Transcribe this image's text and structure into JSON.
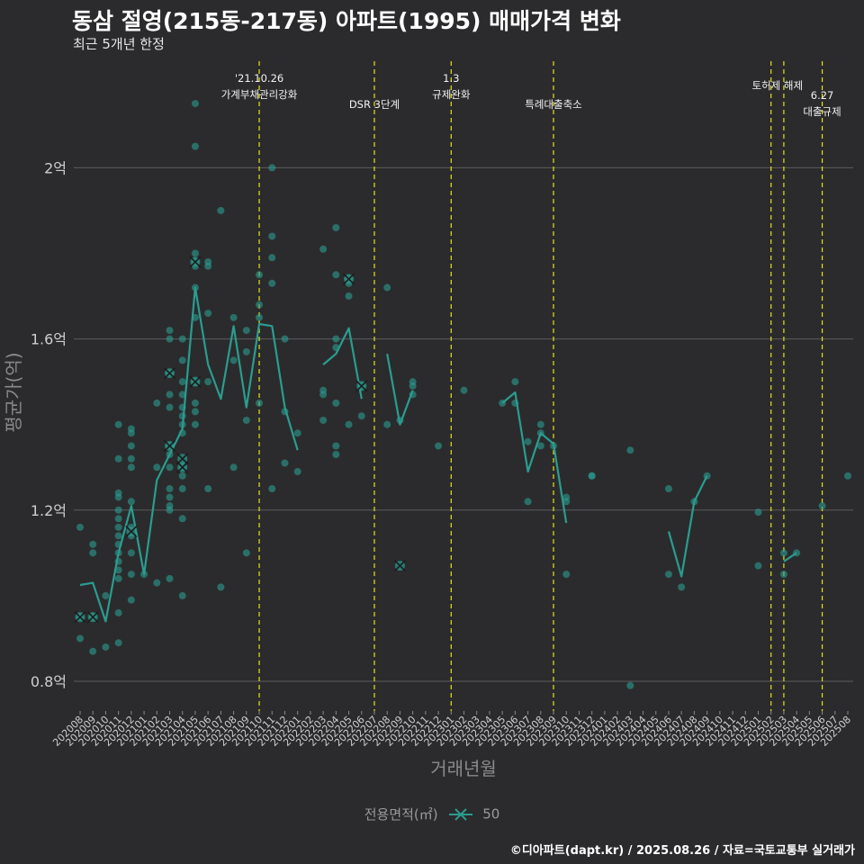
{
  "chart_data": {
    "type": "line",
    "title": "동삼 절영(215동-217동) 아파트(1995) 매매가격 변화",
    "subtitle": "최근 5개년 한정",
    "xlabel": "거래년월",
    "ylabel": "평균가(억)",
    "ylim": [
      0.72,
      2.26
    ],
    "y_ticks": [
      0.8,
      1.2,
      1.6,
      2.0
    ],
    "y_tick_labels": [
      "0.8억",
      "1.2억",
      "1.6억",
      "2억"
    ],
    "grid": true,
    "months": [
      "202008",
      "202009",
      "202010",
      "202011",
      "202012",
      "202101",
      "202102",
      "202103",
      "202104",
      "202105",
      "202106",
      "202107",
      "202108",
      "202109",
      "202110",
      "202111",
      "202112",
      "202201",
      "202202",
      "202203",
      "202204",
      "202205",
      "202206",
      "202207",
      "202208",
      "202209",
      "202210",
      "202211",
      "202212",
      "202301",
      "202302",
      "202303",
      "202304",
      "202305",
      "202306",
      "202307",
      "202308",
      "202309",
      "202310",
      "202311",
      "202312",
      "202401",
      "202402",
      "202403",
      "202404",
      "202405",
      "202406",
      "202407",
      "202408",
      "202409",
      "202410",
      "202411",
      "202412",
      "202501",
      "202502",
      "202503",
      "202504",
      "202505",
      "202506",
      "202507",
      "202508"
    ],
    "legend": {
      "title": "전용면적(㎡)",
      "entries": [
        "50"
      ],
      "position": "bottom"
    },
    "series": [
      {
        "name": "50",
        "color": "#2a9d8f",
        "avg_line": [
          [
            [
              0,
              1.025
            ],
            [
              1,
              1.03
            ],
            [
              2,
              0.94
            ],
            [
              3,
              1.1
            ],
            [
              4,
              1.21
            ],
            [
              5,
              1.05
            ],
            [
              6,
              1.27
            ],
            [
              7,
              1.33
            ],
            [
              8,
              1.39
            ],
            [
              9,
              1.72
            ],
            [
              10,
              1.54
            ],
            [
              11,
              1.46
            ],
            [
              12,
              1.63
            ],
            [
              13,
              1.44
            ],
            [
              14,
              1.635
            ],
            [
              15,
              1.63
            ],
            [
              16,
              1.44
            ],
            [
              17,
              1.34
            ]
          ],
          [
            [
              19,
              1.54
            ],
            [
              20,
              1.565
            ],
            [
              21,
              1.625
            ],
            [
              22,
              1.46
            ]
          ],
          [
            [
              24,
              1.565
            ],
            [
              25,
              1.4
            ],
            [
              26,
              1.48
            ]
          ],
          [
            [
              33,
              1.45
            ],
            [
              34,
              1.475
            ],
            [
              35,
              1.29
            ],
            [
              36,
              1.38
            ],
            [
              37,
              1.355
            ],
            [
              38,
              1.17
            ]
          ],
          [
            [
              46,
              1.15
            ],
            [
              47,
              1.045
            ],
            [
              48,
              1.22
            ],
            [
              49,
              1.28
            ]
          ],
          [
            [
              55,
              1.08
            ],
            [
              56,
              1.1
            ]
          ]
        ],
        "points": [
          [
            0,
            0.95
          ],
          [
            0,
            0.9
          ],
          [
            0,
            1.16
          ],
          [
            1,
            0.95
          ],
          [
            1,
            1.12
          ],
          [
            1,
            1.1
          ],
          [
            1,
            0.87
          ],
          [
            2,
            0.88
          ],
          [
            2,
            1.0
          ],
          [
            3,
            1.4
          ],
          [
            3,
            1.32
          ],
          [
            3,
            1.24
          ],
          [
            3,
            1.23
          ],
          [
            3,
            1.2
          ],
          [
            3,
            1.18
          ],
          [
            3,
            1.16
          ],
          [
            3,
            1.14
          ],
          [
            3,
            1.12
          ],
          [
            3,
            1.1
          ],
          [
            3,
            1.08
          ],
          [
            3,
            1.06
          ],
          [
            3,
            1.04
          ],
          [
            3,
            0.96
          ],
          [
            3,
            0.89
          ],
          [
            4,
            1.39
          ],
          [
            4,
            1.38
          ],
          [
            4,
            1.35
          ],
          [
            4,
            1.32
          ],
          [
            4,
            1.3
          ],
          [
            4,
            1.22
          ],
          [
            4,
            1.16
          ],
          [
            4,
            1.14
          ],
          [
            4,
            1.1
          ],
          [
            4,
            1.05
          ],
          [
            4,
            0.99
          ],
          [
            5,
            1.05
          ],
          [
            6,
            1.45
          ],
          [
            6,
            1.3
          ],
          [
            6,
            1.03
          ],
          [
            7,
            1.62
          ],
          [
            7,
            1.6
          ],
          [
            7,
            1.52
          ],
          [
            7,
            1.47
          ],
          [
            7,
            1.44
          ],
          [
            7,
            1.35
          ],
          [
            7,
            1.33
          ],
          [
            7,
            1.3
          ],
          [
            7,
            1.25
          ],
          [
            7,
            1.23
          ],
          [
            7,
            1.21
          ],
          [
            7,
            1.2
          ],
          [
            7,
            1.04
          ],
          [
            8,
            1.6
          ],
          [
            8,
            1.55
          ],
          [
            8,
            1.5
          ],
          [
            8,
            1.47
          ],
          [
            8,
            1.44
          ],
          [
            8,
            1.42
          ],
          [
            8,
            1.4
          ],
          [
            8,
            1.38
          ],
          [
            8,
            1.3
          ],
          [
            8,
            1.28
          ],
          [
            8,
            1.25
          ],
          [
            8,
            1.18
          ],
          [
            8,
            1.0
          ],
          [
            9,
            2.15
          ],
          [
            9,
            2.05
          ],
          [
            9,
            1.8
          ],
          [
            9,
            1.78
          ],
          [
            9,
            1.77
          ],
          [
            9,
            1.72
          ],
          [
            9,
            1.65
          ],
          [
            9,
            1.5
          ],
          [
            9,
            1.45
          ],
          [
            9,
            1.43
          ],
          [
            9,
            1.4
          ],
          [
            10,
            1.78
          ],
          [
            10,
            1.77
          ],
          [
            10,
            1.66
          ],
          [
            10,
            1.5
          ],
          [
            10,
            1.25
          ],
          [
            11,
            1.9
          ],
          [
            11,
            1.02
          ],
          [
            12,
            1.65
          ],
          [
            12,
            1.55
          ],
          [
            12,
            1.3
          ],
          [
            13,
            1.62
          ],
          [
            13,
            1.57
          ],
          [
            13,
            1.41
          ],
          [
            13,
            1.1
          ],
          [
            14,
            1.75
          ],
          [
            14,
            1.68
          ],
          [
            14,
            1.65
          ],
          [
            14,
            1.45
          ],
          [
            15,
            2.0
          ],
          [
            15,
            1.84
          ],
          [
            15,
            1.79
          ],
          [
            15,
            1.73
          ],
          [
            15,
            1.25
          ],
          [
            16,
            1.6
          ],
          [
            16,
            1.43
          ],
          [
            16,
            1.31
          ],
          [
            17,
            1.38
          ],
          [
            17,
            1.29
          ],
          [
            19,
            1.81
          ],
          [
            19,
            1.48
          ],
          [
            19,
            1.47
          ],
          [
            19,
            1.41
          ],
          [
            20,
            1.86
          ],
          [
            20,
            1.75
          ],
          [
            20,
            1.6
          ],
          [
            20,
            1.58
          ],
          [
            20,
            1.45
          ],
          [
            20,
            1.35
          ],
          [
            20,
            1.33
          ],
          [
            21,
            1.74
          ],
          [
            21,
            1.73
          ],
          [
            21,
            1.7
          ],
          [
            21,
            1.4
          ],
          [
            22,
            1.49
          ],
          [
            22,
            1.42
          ],
          [
            24,
            1.72
          ],
          [
            24,
            1.4
          ],
          [
            25,
            1.41
          ],
          [
            26,
            1.5
          ],
          [
            26,
            1.49
          ],
          [
            26,
            1.47
          ],
          [
            28,
            1.35
          ],
          [
            30,
            1.48
          ],
          [
            33,
            1.45
          ],
          [
            34,
            1.5
          ],
          [
            34,
            1.45
          ],
          [
            35,
            1.36
          ],
          [
            35,
            1.22
          ],
          [
            36,
            1.4
          ],
          [
            36,
            1.38
          ],
          [
            36,
            1.35
          ],
          [
            37,
            1.35
          ],
          [
            38,
            1.23
          ],
          [
            38,
            1.22
          ],
          [
            38,
            1.05
          ],
          [
            40,
            1.28
          ],
          [
            40,
            1.28
          ],
          [
            43,
            1.34
          ],
          [
            43,
            0.79
          ],
          [
            46,
            1.25
          ],
          [
            46,
            1.05
          ],
          [
            47,
            1.02
          ],
          [
            48,
            1.22
          ],
          [
            49,
            1.28
          ],
          [
            53,
            1.195
          ],
          [
            53,
            1.07
          ],
          [
            55,
            1.1
          ],
          [
            55,
            1.05
          ],
          [
            56,
            1.1
          ],
          [
            58,
            1.21
          ],
          [
            60,
            1.28
          ]
        ],
        "outline_points": [
          [
            0,
            0.95
          ],
          [
            1,
            0.95
          ],
          [
            4,
            1.15
          ],
          [
            7,
            1.52
          ],
          [
            7,
            1.35
          ],
          [
            8,
            1.3
          ],
          [
            8,
            1.32
          ],
          [
            9,
            1.78
          ],
          [
            9,
            1.5
          ],
          [
            21,
            1.74
          ],
          [
            22,
            1.49
          ],
          [
            25,
            1.07
          ]
        ]
      }
    ],
    "events": [
      {
        "x": 14,
        "lines": [
          "'21.10.26",
          "가계부채관리강화"
        ],
        "level": 0
      },
      {
        "x": 23,
        "lines": [
          "DSR 3단계"
        ],
        "level": 2
      },
      {
        "x": 29,
        "lines": [
          "1.3",
          "규제완화"
        ],
        "level": 0
      },
      {
        "x": 37,
        "lines": [
          "특례대출축소"
        ],
        "level": 2
      },
      {
        "x": 54,
        "lines": [
          "토허제 해제"
        ],
        "level": 1,
        "dx": 0.5
      },
      {
        "x": 55,
        "lines": [],
        "level": 1
      },
      {
        "x": 58,
        "lines": [
          "6.27",
          "대출규제"
        ],
        "level": 1.6
      }
    ]
  },
  "caption": "©디아파트(dapt.kr) / 2025.08.26 / 자료=국토교통부 실거래가"
}
